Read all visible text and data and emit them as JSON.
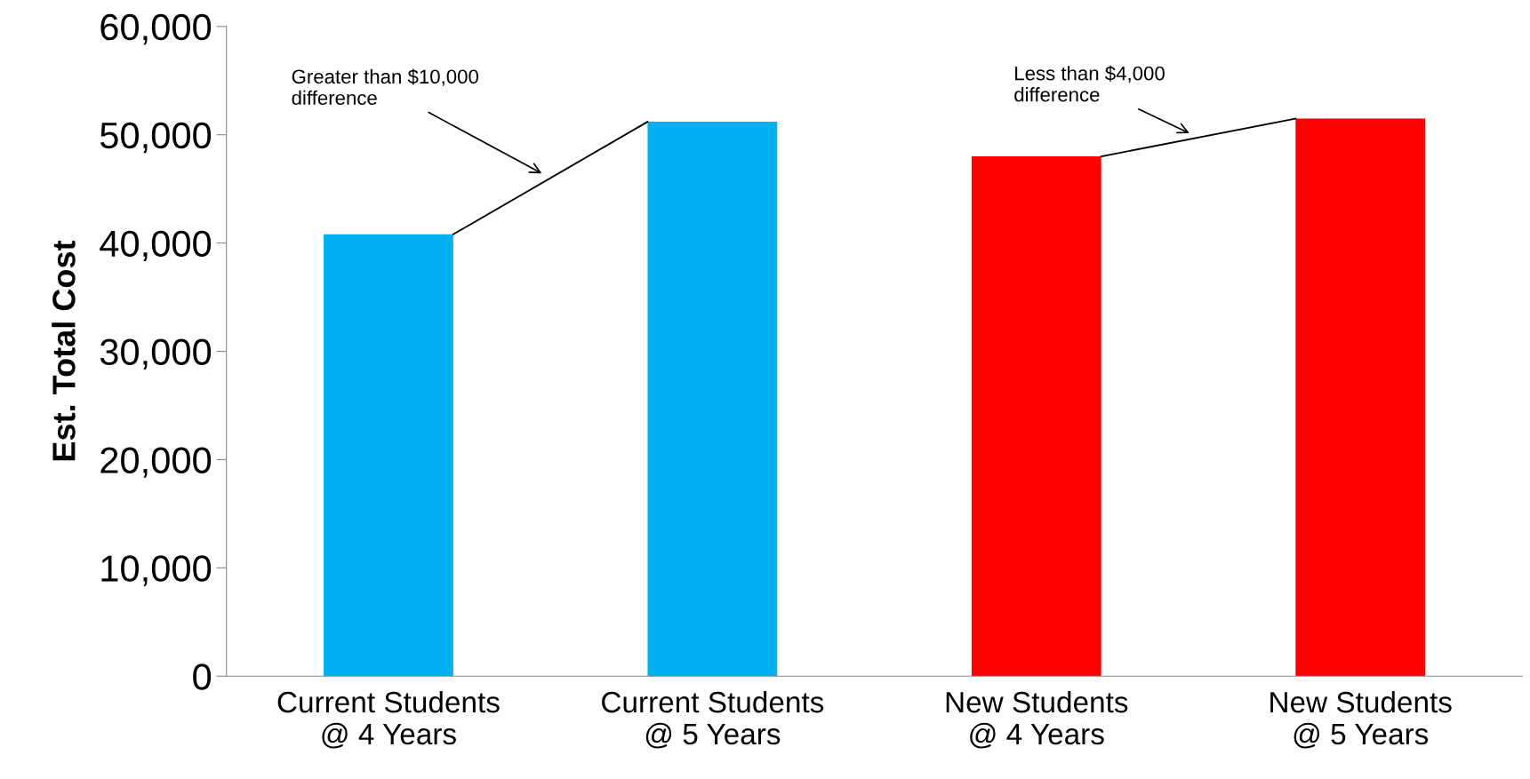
{
  "chart_data": {
    "type": "bar",
    "ylabel": "Est. Total Cost",
    "categories": [
      "Current Students\n@ 4 Years",
      "Current Students\n@ 5 Years",
      "New Students\n@ 4 Years",
      "New Students\n@ 5 Years"
    ],
    "values": [
      40800,
      51200,
      48000,
      51500
    ],
    "colors": [
      "#00b0f0",
      "#00b0f0",
      "#ff0000",
      "#ff0000"
    ],
    "ylim": [
      0,
      60000
    ],
    "yticks": [
      {
        "value": 0,
        "label": "0"
      },
      {
        "value": 10000,
        "label": "10,000"
      },
      {
        "value": 20000,
        "label": "20,000"
      },
      {
        "value": 30000,
        "label": "30,000"
      },
      {
        "value": 40000,
        "label": "40,000"
      },
      {
        "value": 50000,
        "label": "50,000"
      },
      {
        "value": 60000,
        "label": "60,000"
      }
    ],
    "grid": false,
    "legend": false,
    "annotations": [
      "Greater than $10,000\ndifference",
      "Less than $4,000\ndifference"
    ]
  }
}
